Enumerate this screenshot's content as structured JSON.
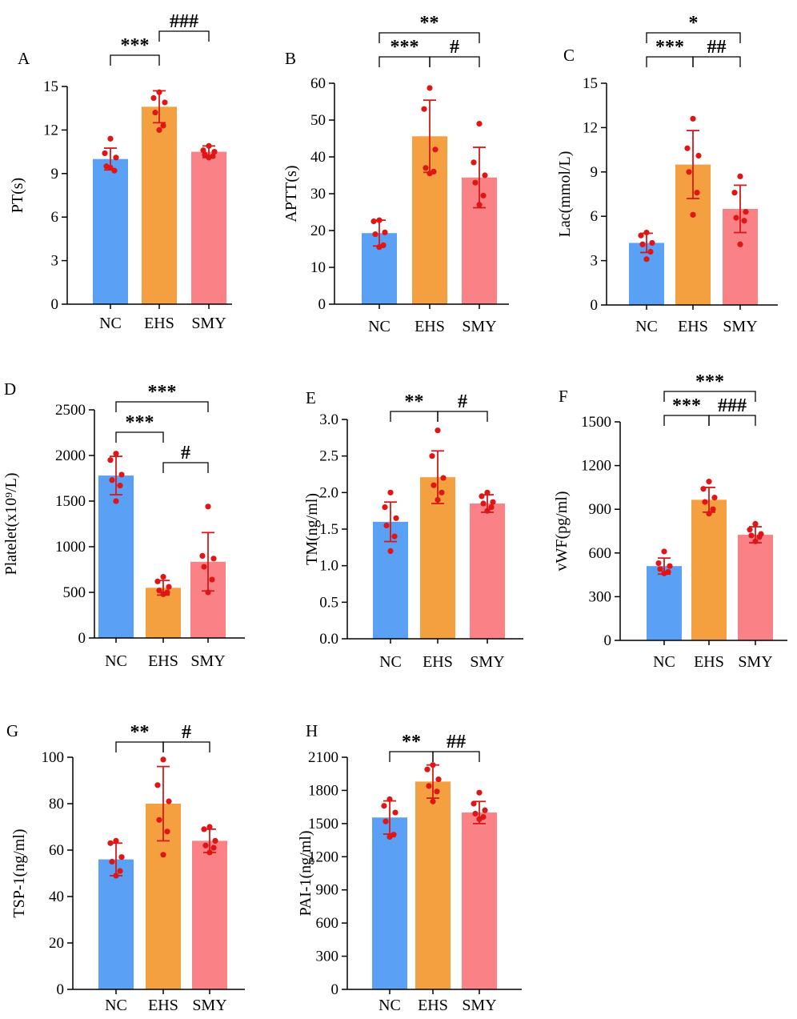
{
  "colors": {
    "NC": "#5aa0f5",
    "EHS": "#f5a040",
    "SMY": "#fa8286",
    "points": "#e01515",
    "error": "#d41a1a"
  },
  "chart_data": [
    {
      "type": "bar",
      "panel": "A",
      "ylabel": "PT(s)",
      "categories": [
        "NC",
        "EHS",
        "SMY"
      ],
      "ylim": [
        0,
        15
      ],
      "yticks": [
        "0",
        "3",
        "6",
        "9",
        "12",
        "15"
      ],
      "means": [
        10.0,
        13.6,
        10.5
      ],
      "sd": [
        0.75,
        1.1,
        0.4
      ],
      "points": [
        [
          11.4,
          10.4,
          10.1,
          9.5,
          9.2,
          9.4
        ],
        [
          14.6,
          14.2,
          13.9,
          13.2,
          12.3,
          12.0
        ],
        [
          10.9,
          10.6,
          10.5,
          10.3,
          10.2,
          10.1
        ]
      ],
      "comparisons": [
        {
          "from": 0,
          "to": 1,
          "label": "***",
          "level": 0
        },
        {
          "from": 1,
          "to": 2,
          "label": "###",
          "level": 1
        }
      ]
    },
    {
      "type": "bar",
      "panel": "B",
      "ylabel": "APTT(s)",
      "categories": [
        "NC",
        "EHS",
        "SMY"
      ],
      "ylim": [
        0,
        60
      ],
      "yticks": [
        "0",
        "10",
        "20",
        "30",
        "40",
        "50",
        "60"
      ],
      "means": [
        19.3,
        45.6,
        34.4
      ],
      "sd": [
        3.5,
        9.8,
        8.2
      ],
      "points": [
        [
          22.8,
          22.5,
          19.5,
          19.0,
          16.0,
          15.5
        ],
        [
          58.7,
          53.0,
          42.0,
          37.0,
          36.0,
          35.5
        ],
        [
          49.0,
          38.5,
          35.0,
          33.0,
          29.5,
          27.0
        ]
      ],
      "comparisons": [
        {
          "from": 0,
          "to": 1,
          "label": "***",
          "level": 0
        },
        {
          "from": 1,
          "to": 2,
          "label": "#",
          "level": 0
        },
        {
          "from": 0,
          "to": 2,
          "label": "**",
          "level": 1
        }
      ]
    },
    {
      "type": "bar",
      "panel": "C",
      "ylabel": "Lac(mmol/L)",
      "categories": [
        "NC",
        "EHS",
        "SMY"
      ],
      "ylim": [
        0,
        15
      ],
      "yticks": [
        "0",
        "3",
        "6",
        "9",
        "12",
        "15"
      ],
      "means": [
        4.2,
        9.5,
        6.5
      ],
      "sd": [
        0.65,
        2.3,
        1.6
      ],
      "points": [
        [
          4.9,
          4.7,
          4.2,
          4.1,
          3.6,
          3.1
        ],
        [
          12.6,
          10.6,
          10.1,
          9.0,
          7.6,
          6.1
        ],
        [
          8.7,
          7.6,
          6.3,
          5.9,
          5.7,
          4.1
        ]
      ],
      "comparisons": [
        {
          "from": 0,
          "to": 1,
          "label": "***",
          "level": 0
        },
        {
          "from": 1,
          "to": 2,
          "label": "##",
          "level": 0
        },
        {
          "from": 0,
          "to": 2,
          "label": "*",
          "level": 1
        }
      ]
    },
    {
      "type": "bar",
      "panel": "D",
      "ylabel": "Platelet(x10⁹/L)",
      "categories": [
        "NC",
        "EHS",
        "SMY"
      ],
      "ylim": [
        0,
        2500
      ],
      "yticks": [
        "0",
        "500",
        "1000",
        "1500",
        "2000",
        "2500"
      ],
      "means": [
        1780,
        550,
        835
      ],
      "sd": [
        210,
        80,
        320
      ],
      "points": [
        [
          2020,
          1950,
          1790,
          1730,
          1670,
          1500
        ],
        [
          670,
          620,
          560,
          520,
          500,
          480
        ],
        [
          1440,
          900,
          870,
          780,
          640,
          500
        ]
      ],
      "comparisons": [
        {
          "from": 0,
          "to": 1,
          "label": "***",
          "level": 0
        },
        {
          "from": 1,
          "to": 2,
          "label": "#",
          "level": -1
        },
        {
          "from": 0,
          "to": 2,
          "label": "***",
          "level": 1
        }
      ]
    },
    {
      "type": "bar",
      "panel": "E",
      "ylabel": "TM(ng/ml)",
      "categories": [
        "NC",
        "EHS",
        "SMY"
      ],
      "ylim": [
        0,
        3.0
      ],
      "yticks": [
        "0.0",
        "0.5",
        "1.0",
        "1.5",
        "2.0",
        "2.5",
        "3.0"
      ],
      "means": [
        1.6,
        2.21,
        1.85
      ],
      "sd": [
        0.27,
        0.36,
        0.12
      ],
      "points": [
        [
          2.0,
          1.8,
          1.65,
          1.55,
          1.4,
          1.2
        ],
        [
          2.85,
          2.5,
          2.2,
          2.1,
          2.0,
          1.9
        ],
        [
          2.0,
          1.95,
          1.87,
          1.85,
          1.8,
          1.75
        ]
      ],
      "comparisons": [
        {
          "from": 0,
          "to": 1,
          "label": "**",
          "level": 0
        },
        {
          "from": 1,
          "to": 2,
          "label": "#",
          "level": 0
        }
      ]
    },
    {
      "type": "bar",
      "panel": "F",
      "ylabel": "vWF(pg/ml)",
      "categories": [
        "NC",
        "EHS",
        "SMY"
      ],
      "ylim": [
        0,
        1500
      ],
      "yticks": [
        "0",
        "300",
        "600",
        "900",
        "1200",
        "1500"
      ],
      "means": [
        510,
        965,
        725
      ],
      "sd": [
        55,
        85,
        55
      ],
      "points": [
        [
          610,
          530,
          510,
          490,
          470,
          460
        ],
        [
          1090,
          1040,
          980,
          950,
          900,
          870
        ],
        [
          800,
          760,
          730,
          720,
          710,
          680
        ]
      ],
      "comparisons": [
        {
          "from": 0,
          "to": 1,
          "label": "***",
          "level": 0
        },
        {
          "from": 1,
          "to": 2,
          "label": "###",
          "level": 0
        },
        {
          "from": 0,
          "to": 2,
          "label": "***",
          "level": 1
        }
      ]
    },
    {
      "type": "bar",
      "panel": "G",
      "ylabel": "TSP-1(ng/ml)",
      "categories": [
        "NC",
        "EHS",
        "SMY"
      ],
      "ylim": [
        0,
        100
      ],
      "yticks": [
        "0",
        "20",
        "40",
        "60",
        "80",
        "100"
      ],
      "means": [
        56,
        80,
        64
      ],
      "sd": [
        7,
        16,
        5
      ],
      "points": [
        [
          64,
          63,
          57,
          55,
          51,
          49
        ],
        [
          99,
          88,
          81,
          73,
          68,
          58
        ],
        [
          70,
          69,
          64,
          62,
          61,
          59
        ]
      ],
      "comparisons": [
        {
          "from": 0,
          "to": 1,
          "label": "**",
          "level": 0
        },
        {
          "from": 1,
          "to": 2,
          "label": "#",
          "level": 0
        }
      ]
    },
    {
      "type": "bar",
      "panel": "H",
      "ylabel": "PAI-1(ng/ml)",
      "categories": [
        "NC",
        "EHS",
        "SMY"
      ],
      "ylim": [
        0,
        2100
      ],
      "yticks": [
        "0",
        "300",
        "600",
        "900",
        "1200",
        "1500",
        "1800",
        "2100"
      ],
      "means": [
        1555,
        1880,
        1600
      ],
      "sd": [
        150,
        150,
        100
      ],
      "points": [
        [
          1720,
          1660,
          1600,
          1520,
          1400,
          1380
        ],
        [
          2030,
          1990,
          1900,
          1840,
          1790,
          1700
        ],
        [
          1780,
          1680,
          1620,
          1590,
          1560,
          1540
        ]
      ],
      "comparisons": [
        {
          "from": 0,
          "to": 1,
          "label": "**",
          "level": 0
        },
        {
          "from": 1,
          "to": 2,
          "label": "##",
          "level": 0
        }
      ]
    }
  ]
}
